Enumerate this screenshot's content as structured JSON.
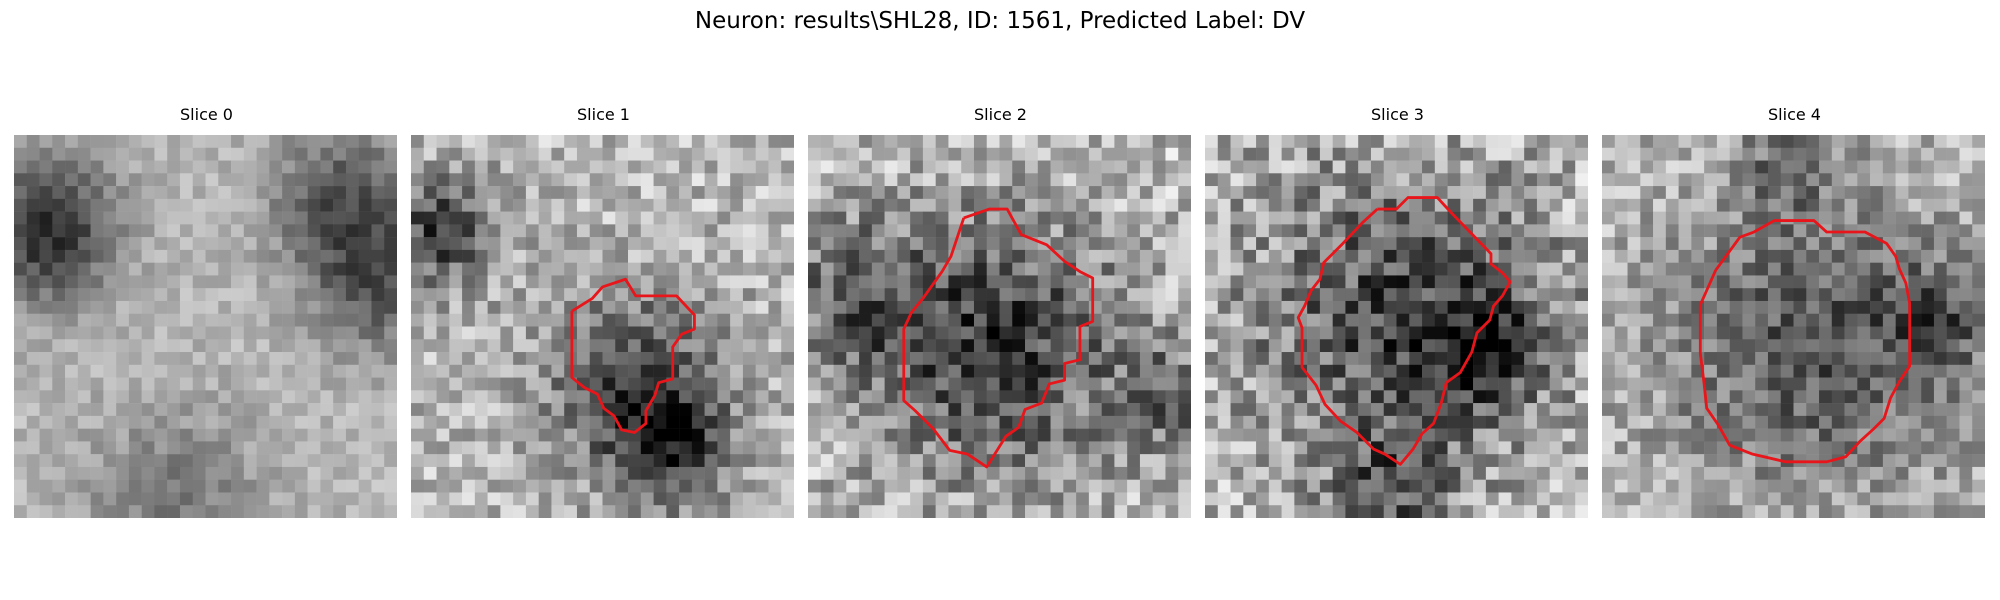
{
  "figure": {
    "title": "Neuron: results\\SHL28, ID: 1561, Predicted Label: DV"
  },
  "panels": [
    {
      "title": "Slice 0",
      "has_contour": false
    },
    {
      "title": "Slice 1",
      "has_contour": true
    },
    {
      "title": "Slice 2",
      "has_contour": true
    },
    {
      "title": "Slice 3",
      "has_contour": true
    },
    {
      "title": "Slice 4",
      "has_contour": true
    }
  ],
  "colors": {
    "contour": "#e8161b"
  }
}
